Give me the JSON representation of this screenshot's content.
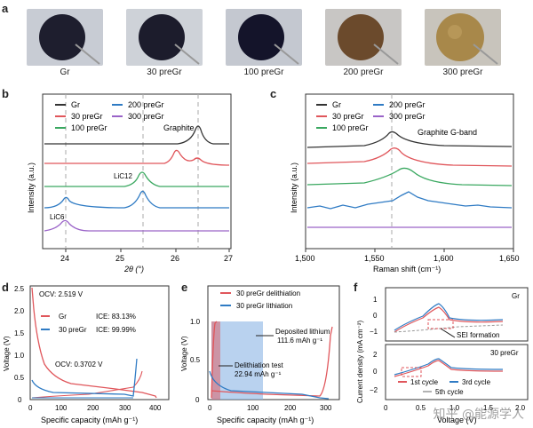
{
  "panel_a": {
    "letter": "a",
    "samples": [
      "Gr",
      "30 preGr",
      "100 preGr",
      "200 preGr",
      "300 preGr"
    ],
    "disc_colors": [
      "#1e1e2e",
      "#1c1c2c",
      "#14142a",
      "#6b4a2c",
      "#a8884a"
    ]
  },
  "panel_b": {
    "letter": "b",
    "legend": [
      "Gr",
      "30 preGr",
      "100 preGr",
      "200 preGr",
      "300 preGr"
    ],
    "colors": [
      "#333333",
      "#e0565b",
      "#3aa860",
      "#2f7bc4",
      "#9a63c8"
    ],
    "xlabel": "2θ (°)",
    "ylabel": "Intensity (a.u.)",
    "xticks": [
      "24",
      "25",
      "26",
      "27"
    ],
    "annotations": [
      "Graphite",
      "LiC12",
      "LiC6"
    ]
  },
  "panel_c": {
    "letter": "c",
    "legend": [
      "Gr",
      "30 preGr",
      "100 preGr",
      "200 preGr",
      "300 preGr"
    ],
    "xlabel": "Raman shift (cm⁻¹)",
    "ylabel": "Intensity (a.u.)",
    "xticks": [
      "1,500",
      "1,550",
      "1,600",
      "1,650"
    ],
    "annotation": "Graphite G-band"
  },
  "panel_d": {
    "letter": "d",
    "ocv1": "OCV: 2.519 V",
    "ocv2": "OCV: 0.3702 V",
    "legend": [
      "Gr",
      "30 preGr"
    ],
    "ice": [
      "ICE: 83.13%",
      "ICE: 99.99%"
    ],
    "xlabel": "Specific capacity (mAh g⁻¹)",
    "ylabel": "Voltage (V)",
    "xticks": [
      "0",
      "100",
      "200",
      "300",
      "400"
    ],
    "yticks": [
      "0",
      "0.5",
      "1.0",
      "1.5",
      "2.0",
      "2.5"
    ]
  },
  "panel_e": {
    "letter": "e",
    "legend": [
      "30 preGr delithiation",
      "30 preGr lithiation"
    ],
    "annot1": [
      "Deposited lithium",
      "111.6 mAh g⁻¹"
    ],
    "annot2": [
      "Delithiation test",
      "22.94 mAh g⁻¹"
    ],
    "xlabel": "Specific capacity (mAh g⁻¹)",
    "ylabel": "Voltage (V)",
    "xticks": [
      "0",
      "100",
      "200",
      "300"
    ],
    "yticks": [
      "0",
      "0.5",
      "1.0"
    ]
  },
  "panel_f": {
    "letter": "f",
    "top_label": "Gr",
    "bottom_label": "30 preGr",
    "sei": "SEI formation",
    "legend": [
      "1st cycle",
      "3rd cycle",
      "5th cycle"
    ],
    "xlabel": "Voltage (V)",
    "ylabel": "Current density (mA cm⁻²)",
    "yticks_top": [
      "1",
      "0",
      "−1"
    ],
    "yticks_bottom": [
      "2",
      "0",
      "−2"
    ],
    "xticks": [
      "0",
      "0.5",
      "1.0",
      "1.5",
      "2.0"
    ]
  },
  "watermark": "知乎 @能源学人",
  "chart_data": [
    {
      "type": "line",
      "panel": "b",
      "xlabel": "2θ (°)",
      "ylabel": "Intensity (a.u.)",
      "xlim": [
        23.5,
        27
      ],
      "series": [
        {
          "name": "Gr",
          "peaks": [
            26.4
          ]
        },
        {
          "name": "30 preGr",
          "peaks": [
            26.0,
            26.4
          ]
        },
        {
          "name": "100 preGr",
          "peaks": [
            25.3
          ]
        },
        {
          "name": "200 preGr",
          "peaks": [
            24.1,
            25.35
          ]
        },
        {
          "name": "300 preGr",
          "peaks": [
            24.05
          ]
        }
      ]
    },
    {
      "type": "line",
      "panel": "c",
      "xlabel": "Raman shift (cm⁻¹)",
      "ylabel": "Intensity (a.u.)",
      "xlim": [
        1500,
        1675
      ],
      "series": [
        {
          "name": "Gr",
          "peaks": [
            1580
          ]
        },
        {
          "name": "30 preGr",
          "peaks": [
            1585
          ]
        },
        {
          "name": "100 preGr",
          "peaks": [
            1595
          ]
        },
        {
          "name": "200 preGr",
          "peaks": [
            1600
          ]
        },
        {
          "name": "300 preGr",
          "peaks": []
        }
      ]
    },
    {
      "type": "line",
      "panel": "d",
      "xlabel": "Specific capacity (mAh g⁻¹)",
      "ylabel": "Voltage (V)",
      "xlim": [
        0,
        450
      ],
      "ylim": [
        0,
        2.6
      ]
    },
    {
      "type": "line",
      "panel": "e",
      "xlabel": "Specific capacity (mAh g⁻¹)",
      "ylabel": "Voltage (V)",
      "xlim": [
        0,
        350
      ],
      "ylim": [
        0,
        1.1
      ]
    },
    {
      "type": "line",
      "panel": "f",
      "xlabel": "Voltage (V)",
      "ylabel": "Current density (mA cm⁻²)",
      "xlim": [
        0,
        2.0
      ]
    }
  ]
}
